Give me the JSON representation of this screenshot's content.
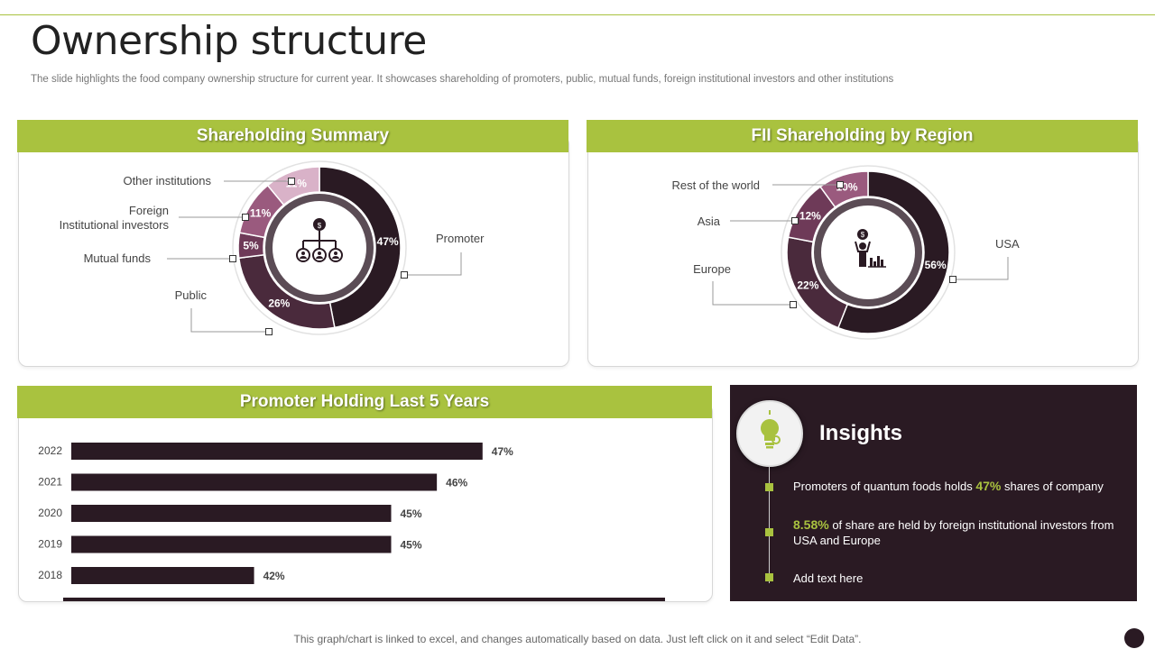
{
  "page": {
    "title": "Ownership structure",
    "subtitle": "The slide highlights the food company ownership structure for current year.  It showcases shareholding of promoters, public, mutual funds, foreign institutional investors and other institutions",
    "footer": "This graph/chart is linked to excel,  and changes automatically based on data. Just left click on it and select “Edit Data”."
  },
  "colors": {
    "accent": "#a9c23f",
    "dark": "#2a1a23",
    "plum": "#5a2e47",
    "mauve": "#9a5a7e",
    "pink": "#d9b2c8"
  },
  "panels": {
    "summary_title": "Shareholding Summary",
    "region_title": "FII Shareholding by Region",
    "promoter_title": "Promoter Holding Last 5 Years"
  },
  "chart_data": [
    {
      "type": "pie",
      "title": "Shareholding Summary",
      "labels": [
        "Promoter",
        "Public",
        "Mutual funds",
        "Foreign Institutional investors",
        "Other institutions"
      ],
      "label_lines": [
        [
          "Promoter"
        ],
        [
          "Public"
        ],
        [
          "Mutual funds"
        ],
        [
          "Foreign",
          "Institutional investors"
        ],
        [
          "Other institutions"
        ]
      ],
      "values": [
        47,
        26,
        5,
        11,
        11
      ],
      "value_labels": [
        "47%",
        "26%",
        "5%",
        "11%",
        "11%"
      ],
      "colors": [
        "#2a1a23",
        "#4a2a3c",
        "#6e3a58",
        "#9a5a7e",
        "#d9b2c8"
      ]
    },
    {
      "type": "pie",
      "title": "FII Shareholding by Region",
      "labels": [
        "USA",
        "Europe",
        "Asia",
        "Rest of the world"
      ],
      "values": [
        56,
        22,
        12,
        10
      ],
      "value_labels": [
        "56%",
        "22%",
        "12%",
        "10%"
      ],
      "colors": [
        "#2a1a23",
        "#4a2a3c",
        "#6e3a58",
        "#9a5a7e"
      ]
    },
    {
      "type": "bar",
      "orientation": "horizontal",
      "title": "Promoter Holding Last 5 Years",
      "categories": [
        "2022",
        "2021",
        "2020",
        "2019",
        "2018"
      ],
      "values": [
        47,
        46,
        45,
        45,
        42
      ],
      "value_labels": [
        "47%",
        "46%",
        "45%",
        "45%",
        "42%"
      ],
      "xlim": [
        38,
        52
      ],
      "color": "#2a1a23"
    }
  ],
  "insights": {
    "title": "Insights",
    "items": [
      {
        "before": "Promoters of quantum foods holds ",
        "highlight": "47%",
        "after": " shares of company"
      },
      {
        "before": "",
        "highlight": "8.58%",
        "after": " of share are held by foreign institutional investors from USA and Europe"
      },
      {
        "before": "Add text here",
        "highlight": "",
        "after": ""
      }
    ]
  }
}
